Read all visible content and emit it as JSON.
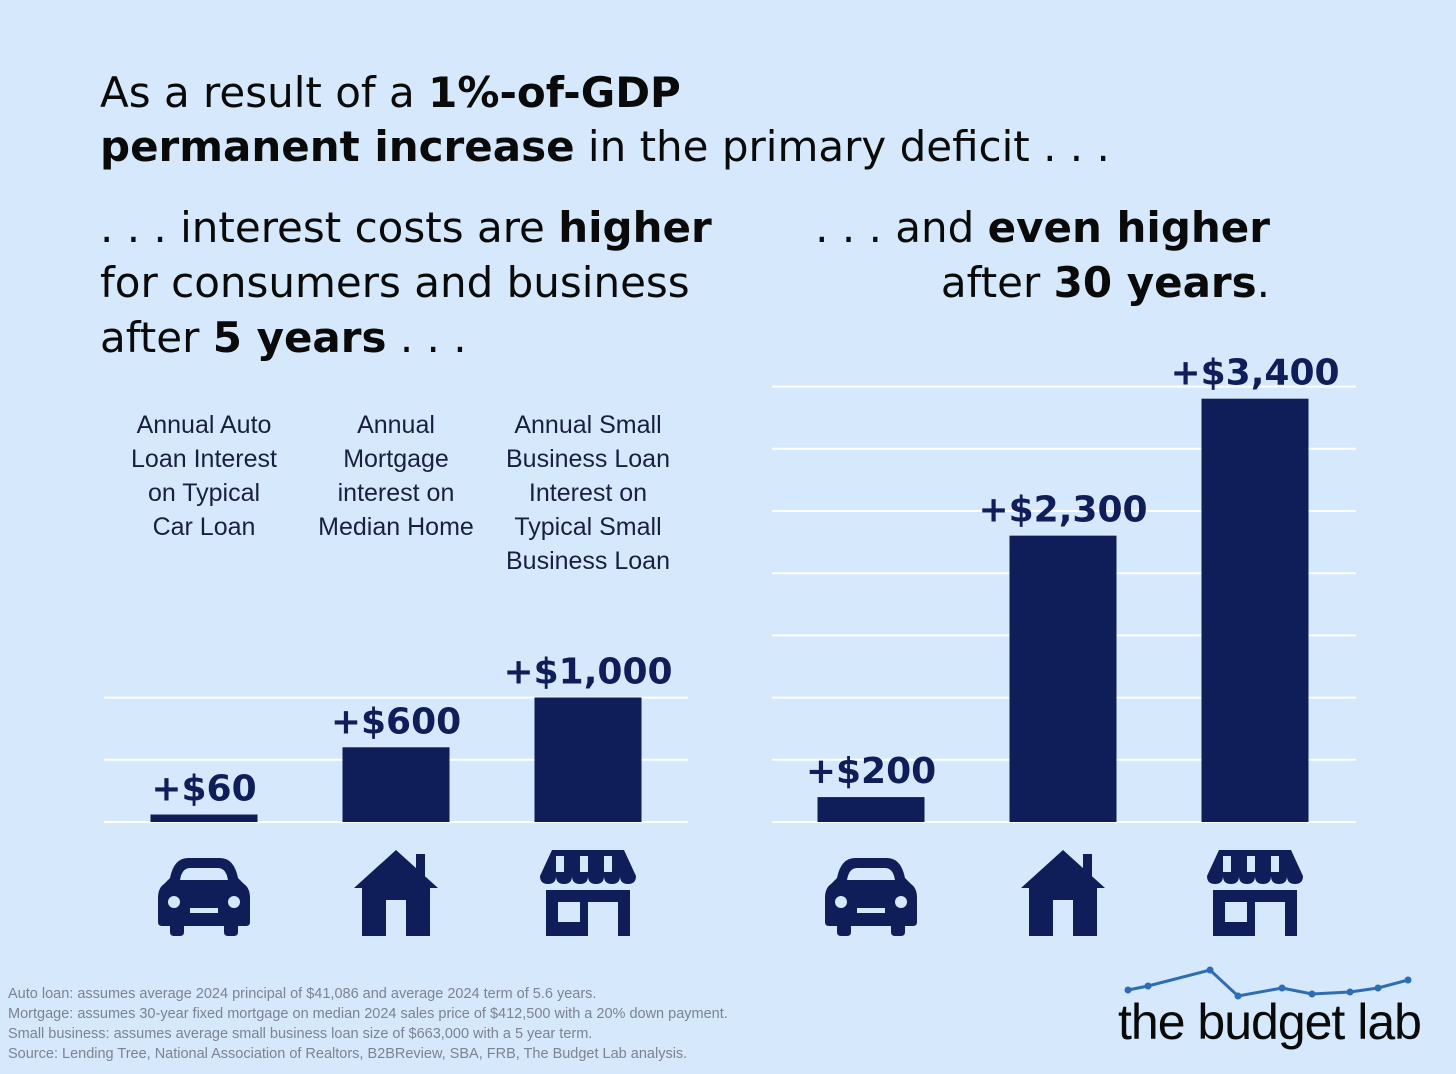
{
  "headline": {
    "part1": "As a result of a ",
    "bold1": "1%-of-GDP",
    "bold2": "permanent increase",
    "part2": " in the primary deficit . . ."
  },
  "subtitle_left": {
    "part1": ". . . interest costs are ",
    "bold1": "higher",
    "part2": "for consumers and business",
    "part3": "after ",
    "bold2": "5 years",
    "part4": " . . ."
  },
  "subtitle_right": {
    "part1": ". . . and ",
    "bold1": "even higher",
    "part2": "after ",
    "bold2": "30 years",
    "part3": "."
  },
  "category_labels": [
    [
      "Annual Auto",
      "Loan Interest",
      "on Typical",
      "Car Loan"
    ],
    [
      "Annual",
      "Mortgage",
      "interest on",
      "Median Home"
    ],
    [
      "Annual Small",
      "Business Loan",
      "Interest on",
      "Typical Small",
      "Business Loan"
    ]
  ],
  "chart_data": [
    {
      "type": "bar",
      "categories": [
        "Auto loan",
        "Mortgage",
        "Small business"
      ],
      "values": [
        60,
        600,
        1000
      ],
      "data_labels": [
        "+$60",
        "+$600",
        "+$1,000"
      ],
      "horizon": "5 years",
      "icons": [
        "car-icon",
        "house-icon",
        "storefront-icon"
      ],
      "grid": true
    },
    {
      "type": "bar",
      "categories": [
        "Auto loan",
        "Mortgage",
        "Small business"
      ],
      "values": [
        200,
        2300,
        3400
      ],
      "data_labels": [
        "+$200",
        "+$2,300",
        "+$3,400"
      ],
      "horizon": "30 years",
      "icons": [
        "car-icon",
        "house-icon",
        "storefront-icon"
      ],
      "grid": true
    }
  ],
  "colors": {
    "background": "#d6e8fb",
    "bar": "#0f1e58",
    "grid": "#ffffff",
    "logo_line": "#2e6db4"
  },
  "footnotes": [
    "Auto loan: assumes average 2024 principal of $41,086 and average 2024 term of 5.6 years.",
    "Mortgage: assumes 30-year fixed mortgage on median 2024 sales price of $412,500 with a 20% down payment.",
    "Small business: assumes average small business loan size of $663,000 with a 5 year term.",
    "Source: Lending Tree, National Association of Realtors, B2BReview, SBA, FRB, The Budget Lab analysis."
  ],
  "logo": {
    "text": "the budget lab"
  }
}
